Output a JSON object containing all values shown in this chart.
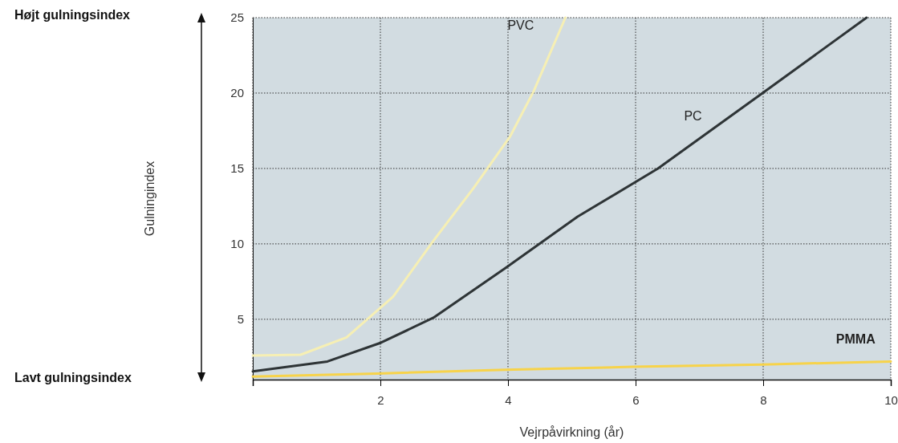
{
  "chart_data": {
    "type": "line",
    "xlabel": "Vejrpåvirkning (år)",
    "xlim": [
      0,
      10
    ],
    "ylim": [
      1,
      25
    ],
    "xticks": [
      {
        "value": 0,
        "label": null
      },
      2,
      4,
      6,
      8,
      10
    ],
    "yticks": [
      5,
      10,
      15,
      20,
      25
    ],
    "grid": true,
    "marker": "none",
    "line_style": "solid",
    "annotations": [
      "Højt gulningsindex",
      "Lavt gulningsindex",
      "Gulningindex"
    ],
    "series": [
      {
        "name": "PVC",
        "color": "#f6efb4",
        "x": [
          0,
          0.75,
          1.47,
          2.2,
          2.83,
          3.46,
          4.03,
          4.4,
          4.9
        ],
        "values": [
          2.6,
          2.65,
          3.8,
          6.5,
          10.2,
          13.7,
          17.1,
          20.1,
          25
        ]
      },
      {
        "name": "PC",
        "color": "#2e3436",
        "x": [
          0,
          1.17,
          2.01,
          2.83,
          3.96,
          5.09,
          6.35,
          7.99,
          9.62
        ],
        "values": [
          1.55,
          2.2,
          3.45,
          5.1,
          8.4,
          11.8,
          15,
          20,
          25
        ]
      },
      {
        "name": "PMMA",
        "color": "#f7d34a",
        "x": [
          0,
          1.95,
          3.96,
          5.97,
          7.99,
          10
        ],
        "values": [
          1.2,
          1.4,
          1.65,
          1.85,
          2.0,
          2.2
        ]
      }
    ]
  }
}
